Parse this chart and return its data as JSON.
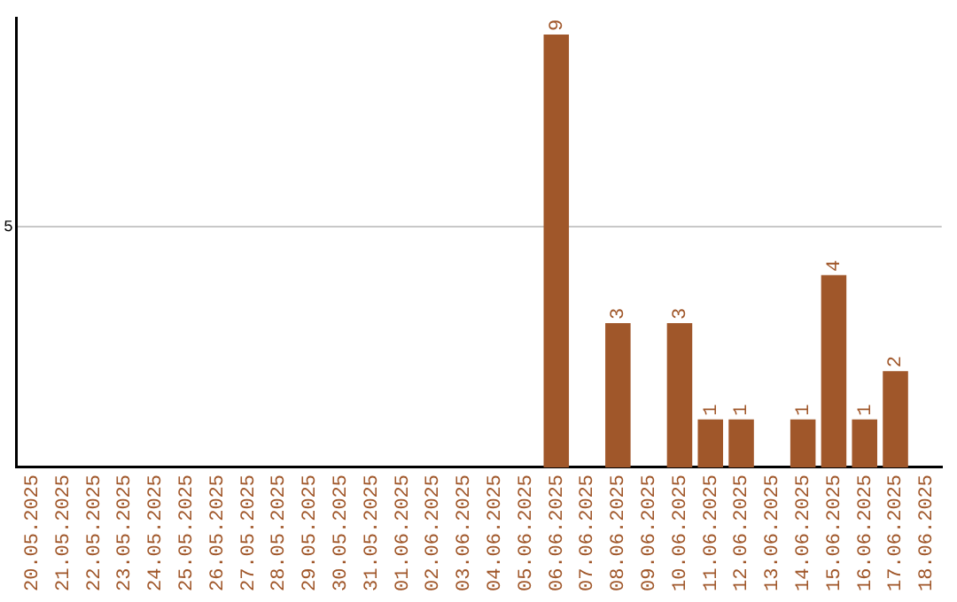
{
  "chart_data": {
    "type": "bar",
    "categories": [
      "20.05.2025",
      "21.05.2025",
      "22.05.2025",
      "23.05.2025",
      "24.05.2025",
      "25.05.2025",
      "26.05.2025",
      "27.05.2025",
      "28.05.2025",
      "29.05.2025",
      "30.05.2025",
      "31.05.2025",
      "01.06.2025",
      "02.06.2025",
      "03.06.2025",
      "04.06.2025",
      "05.06.2025",
      "06.06.2025",
      "07.06.2025",
      "08.06.2025",
      "09.06.2025",
      "10.06.2025",
      "11.06.2025",
      "12.06.2025",
      "13.06.2025",
      "14.06.2025",
      "15.06.2025",
      "16.06.2025",
      "17.06.2025",
      "18.06.2025"
    ],
    "values": [
      null,
      null,
      null,
      null,
      null,
      null,
      null,
      null,
      null,
      null,
      null,
      null,
      null,
      null,
      null,
      null,
      null,
      9,
      null,
      3,
      null,
      3,
      1,
      1,
      null,
      1,
      4,
      1,
      2,
      null
    ],
    "value_labels": [
      null,
      null,
      null,
      null,
      null,
      null,
      null,
      null,
      null,
      null,
      null,
      null,
      null,
      null,
      null,
      null,
      null,
      "9",
      null,
      "3",
      null,
      "3",
      "1",
      "1",
      null,
      "1",
      "4",
      "1",
      "2",
      null
    ],
    "color": "#a0572a",
    "ylim": [
      0,
      9.35
    ],
    "yticks": [
      5
    ],
    "grid": "y",
    "legend": false
  }
}
